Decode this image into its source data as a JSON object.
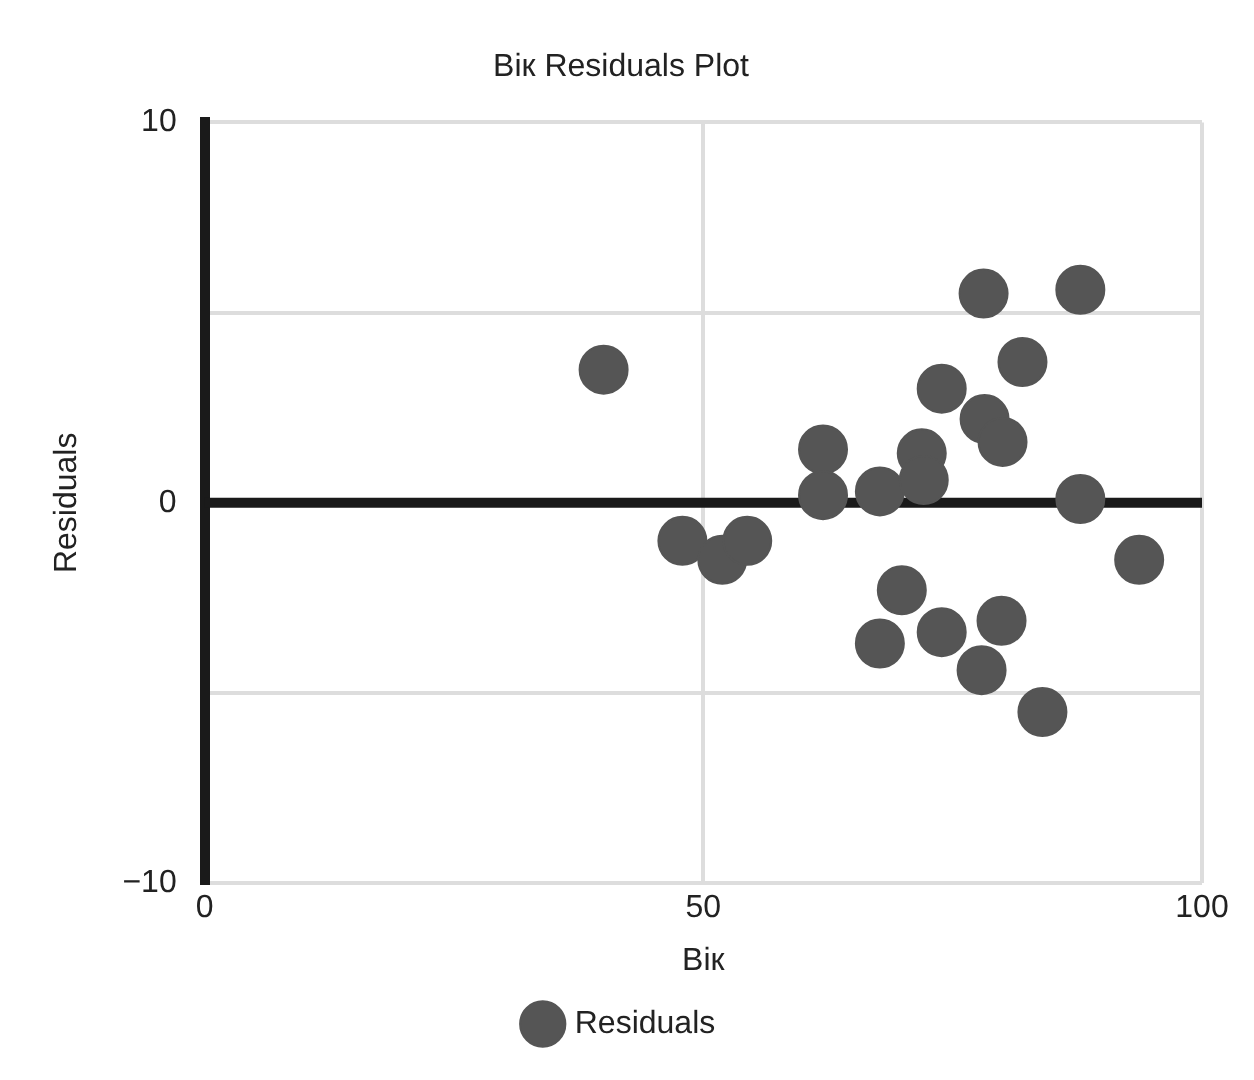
{
  "chart_data": {
    "type": "scatter",
    "title": "Вік Residuals Plot",
    "xlabel": "Вік",
    "ylabel": "Residuals",
    "series": [
      {
        "name": "Residuals",
        "color": "#555555",
        "x": [
          40,
          47.9,
          51.9,
          54.4,
          62,
          62,
          67.7,
          71.9,
          72.1,
          73.9,
          78.2,
          80,
          82,
          78.1,
          87.8,
          87.8,
          93.7,
          69.9,
          67.7,
          73.9,
          79.9,
          77.9,
          84
        ],
        "values": [
          3.5,
          -1,
          -1.5,
          -1,
          1.4,
          0.2,
          0.3,
          1.3,
          0.6,
          3,
          2.2,
          1.6,
          3.7,
          5.5,
          5.6,
          0.1,
          -1.5,
          -2.3,
          -3.7,
          -3.4,
          -3.1,
          -4.4,
          -5.5
        ]
      }
    ],
    "xlim": [
      0,
      100
    ],
    "xticks": [
      0,
      50,
      100
    ],
    "ylim": [
      -10,
      10
    ],
    "yticks": [
      -10,
      {
        "value": -5,
        "label": null
      },
      0,
      {
        "value": 5,
        "label": null
      },
      10
    ],
    "grid": true,
    "legend": "bottom",
    "marker": "circle",
    "ref_lines": [
      {
        "axis": "y",
        "value": 0,
        "color": "#1a1a1a"
      }
    ]
  }
}
